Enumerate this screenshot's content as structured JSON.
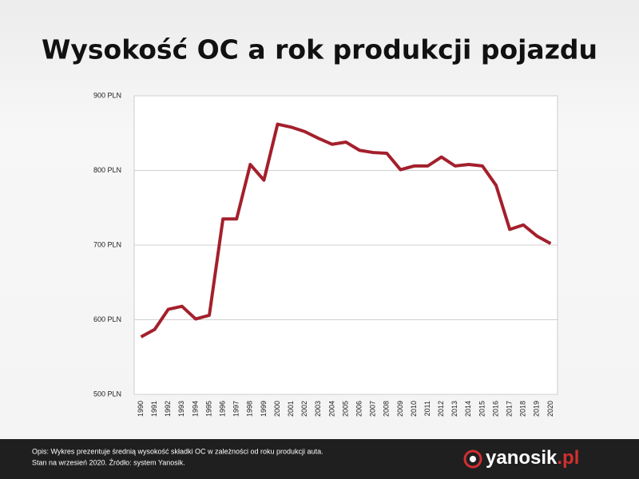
{
  "chart_data": {
    "type": "line",
    "title": "Wysokość OC a rok produkcji pojazdu",
    "categories": [
      "1990",
      "1991",
      "1992",
      "1993",
      "1994",
      "1995",
      "1996",
      "1997",
      "1998",
      "1999",
      "2000",
      "2001",
      "2002",
      "2003",
      "2004",
      "2005",
      "2006",
      "2007",
      "2008",
      "2009",
      "2010",
      "2011",
      "2012",
      "2013",
      "2014",
      "2015",
      "2016",
      "2017",
      "2018",
      "2019",
      "2020"
    ],
    "values": [
      577,
      587,
      614,
      618,
      601,
      606,
      735,
      735,
      808,
      787,
      862,
      858,
      852,
      843,
      835,
      838,
      827,
      824,
      823,
      801,
      806,
      806,
      818,
      806,
      808,
      806,
      780,
      721,
      727,
      712,
      702
    ],
    "color": "#a3202c",
    "ylim": [
      500,
      900
    ],
    "yticks": [
      {
        "value": 500,
        "label": "500 PLN"
      },
      {
        "value": 600,
        "label": "600 PLN"
      },
      {
        "value": 700,
        "label": "700 PLN"
      },
      {
        "value": 800,
        "label": "800 PLN"
      },
      {
        "value": 900,
        "label": "900 PLN"
      }
    ],
    "grid": true
  },
  "footer": {
    "note_line1": "Opis: Wykres prezentuje średnią wysokość składki OC w zależności od roku produkcji auta.",
    "note_line2": "Stan na wrzesień 2020. Źródło: system Yanosik.",
    "logo_main": "yanosik",
    "logo_suffix": ".pl"
  }
}
